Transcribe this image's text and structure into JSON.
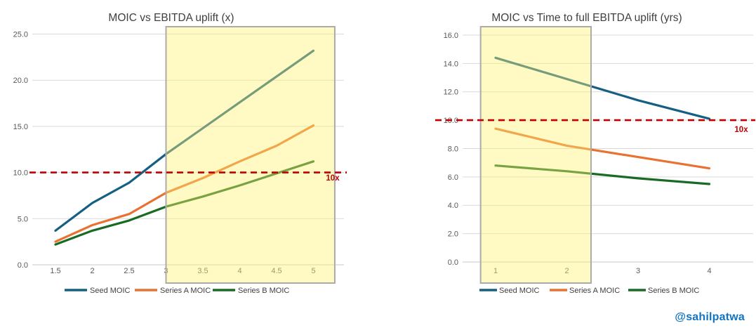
{
  "watermark": {
    "text": "@sahilpatwa",
    "color": "#1173C4"
  },
  "palette": {
    "seed_blue": "#156082",
    "series_a_orange": "#E97132",
    "series_b_green": "#196B24",
    "threshold_red": "#C00000",
    "gridline_gray": "#D9D9D9",
    "tick_label_gray": "#595959",
    "title_gray": "#404040",
    "highlight_fill_yellow": "#FFF170",
    "highlight_border_gray": "#ABABAB"
  },
  "chart_data": [
    {
      "type": "line",
      "title": "MOIC vs EBITDA uplift (x)",
      "xlabel": "",
      "ylabel": "",
      "x": [
        1.5,
        2,
        2.5,
        3,
        3.5,
        4,
        4.5,
        5
      ],
      "x_tick_labels": [
        "1.5",
        "2",
        "2.5",
        "3",
        "3.5",
        "4",
        "4.5",
        "5"
      ],
      "xlim": [
        1.5,
        5
      ],
      "y_ticks": [
        0,
        5,
        10,
        15,
        20,
        25
      ],
      "y_tick_labels": [
        "0.0",
        "5.0",
        "10.0",
        "15.0",
        "20.0",
        "25.0"
      ],
      "ylim": [
        0,
        25
      ],
      "grid": "horizontal",
      "legend_position": "bottom",
      "series": [
        {
          "name": "Seed MOIC",
          "color": "#156082",
          "values": [
            3.7,
            6.7,
            8.9,
            12.0,
            14.8,
            17.6,
            20.4,
            23.2
          ]
        },
        {
          "name": "Series A MOIC",
          "color": "#E97132",
          "values": [
            2.5,
            4.3,
            5.5,
            7.8,
            9.4,
            11.2,
            12.9,
            15.1
          ]
        },
        {
          "name": "Series B MOIC",
          "color": "#196B24",
          "values": [
            2.2,
            3.7,
            4.8,
            6.3,
            7.4,
            8.6,
            9.9,
            11.2
          ]
        }
      ],
      "threshold": {
        "value": 10,
        "label": "10x",
        "color": "#C00000",
        "style": "dashed"
      },
      "highlight_region": {
        "x_from": 3.0,
        "x_to": 5.29,
        "fill": "#FFF170",
        "border": "#ABABAB"
      }
    },
    {
      "type": "line",
      "title": "MOIC vs Time to full EBITDA uplift (yrs)",
      "xlabel": "",
      "ylabel": "",
      "x": [
        1,
        2,
        3,
        4
      ],
      "x_tick_labels": [
        "1",
        "2",
        "3",
        "4"
      ],
      "xlim": [
        1,
        4
      ],
      "y_ticks": [
        0,
        2,
        4,
        6,
        8,
        10,
        12,
        14,
        16
      ],
      "y_tick_labels": [
        "0.0",
        "2.0",
        "4.0",
        "6.0",
        "8.0",
        "10.0",
        "12.0",
        "14.0",
        "16.0"
      ],
      "ylim": [
        0,
        16
      ],
      "grid": "horizontal",
      "legend_position": "bottom",
      "series": [
        {
          "name": "Seed MOIC",
          "color": "#156082",
          "values": [
            14.4,
            12.9,
            11.4,
            10.1
          ]
        },
        {
          "name": "Series A MOIC",
          "color": "#E97132",
          "values": [
            9.4,
            8.2,
            7.4,
            6.6
          ]
        },
        {
          "name": "Series B MOIC",
          "color": "#196B24",
          "values": [
            6.8,
            6.4,
            5.9,
            5.5
          ]
        }
      ],
      "threshold": {
        "value": 10,
        "label": "10x",
        "color": "#C00000",
        "style": "dashed"
      },
      "highlight_region": {
        "x_from": 0.79,
        "x_to": 2.34,
        "fill": "#FFF170",
        "border": "#ABABAB"
      }
    }
  ]
}
